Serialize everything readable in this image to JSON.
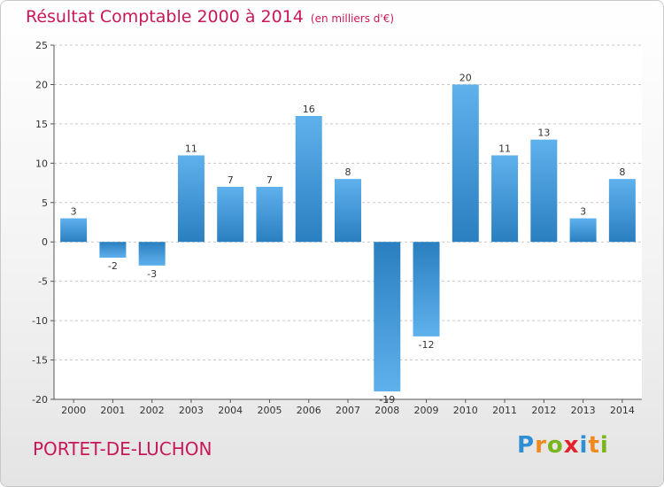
{
  "header": {
    "title": "Résultat Comptable 2000 à 2014",
    "subtitle": "(en milliers d'€)"
  },
  "footer": {
    "city": "PORTET-DE-LUCHON",
    "logo_text": "Proxiti"
  },
  "colors": {
    "accent": "#c8175a",
    "bar_light": "#5fb1ec",
    "bar_dark": "#2a7fc0"
  },
  "chart_data": {
    "type": "bar",
    "title": "Résultat Comptable 2000 à 2014",
    "subtitle": "(en milliers d'€)",
    "xlabel": "",
    "ylabel": "",
    "categories": [
      "2000",
      "2001",
      "2002",
      "2003",
      "2004",
      "2005",
      "2006",
      "2007",
      "2008",
      "2009",
      "2010",
      "2011",
      "2012",
      "2013",
      "2014"
    ],
    "values": [
      3,
      -2,
      -3,
      11,
      7,
      7,
      16,
      8,
      -19,
      -12,
      20,
      11,
      13,
      3,
      8
    ],
    "ylim": [
      -20,
      25
    ],
    "yticks": [
      -20,
      -15,
      -10,
      -5,
      0,
      5,
      10,
      15,
      20,
      25
    ],
    "grid": "horizontal-dashed"
  }
}
